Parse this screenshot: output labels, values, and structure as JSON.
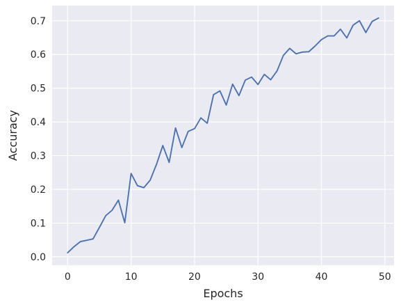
{
  "chart_data": {
    "type": "line",
    "title": "",
    "xlabel": "Epochs",
    "ylabel": "Accuracy",
    "xlim": [
      -2.45,
      51.45
    ],
    "ylim": [
      -0.025,
      0.745
    ],
    "x_ticks": [
      0,
      10,
      20,
      30,
      40,
      50
    ],
    "x_tick_labels": [
      "0",
      "10",
      "20",
      "30",
      "40",
      "50"
    ],
    "y_ticks": [
      0.0,
      0.1,
      0.2,
      0.3,
      0.4,
      0.5,
      0.6,
      0.7
    ],
    "y_tick_labels": [
      "0.0",
      "0.1",
      "0.2",
      "0.3",
      "0.4",
      "0.5",
      "0.6",
      "0.7"
    ],
    "grid": true,
    "background_color": "#eaeaf2",
    "grid_color": "#ffffff",
    "series": [
      {
        "color": "#4c72b0",
        "x": [
          0,
          1,
          2,
          3,
          4,
          5,
          6,
          7,
          8,
          9,
          10,
          11,
          12,
          13,
          14,
          15,
          16,
          17,
          18,
          19,
          20,
          21,
          22,
          23,
          24,
          25,
          26,
          27,
          28,
          29,
          30,
          31,
          32,
          33,
          34,
          35,
          36,
          37,
          38,
          39,
          40,
          41,
          42,
          43,
          44,
          45,
          46,
          47,
          48,
          49
        ],
        "values": [
          0.012,
          0.03,
          0.045,
          0.049,
          0.053,
          0.087,
          0.122,
          0.138,
          0.168,
          0.101,
          0.247,
          0.211,
          0.205,
          0.227,
          0.274,
          0.33,
          0.28,
          0.382,
          0.324,
          0.372,
          0.38,
          0.412,
          0.396,
          0.481,
          0.492,
          0.45,
          0.512,
          0.478,
          0.524,
          0.533,
          0.511,
          0.541,
          0.525,
          0.551,
          0.597,
          0.618,
          0.602,
          0.607,
          0.608,
          0.625,
          0.644,
          0.655,
          0.655,
          0.675,
          0.649,
          0.687,
          0.7,
          0.665,
          0.698,
          0.708
        ]
      }
    ]
  }
}
